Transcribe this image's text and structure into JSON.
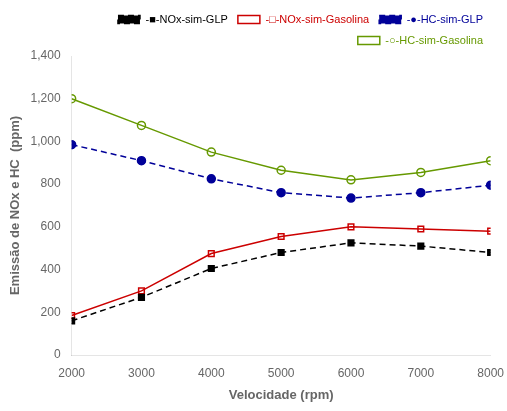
{
  "chart_data": {
    "type": "line",
    "x": [
      2000,
      3000,
      4000,
      5000,
      6000,
      7000,
      8000
    ],
    "series": [
      {
        "name": "-■-NOx-sim-GLP",
        "color": "#000000",
        "line_style": "dashed",
        "marker": "square",
        "values": [
          160,
          270,
          405,
          480,
          525,
          510,
          480
        ]
      },
      {
        "name": "-□-NOx-sim-Gasolina",
        "color": "#cc0000",
        "line_style": "solid",
        "marker": "square-open",
        "values": [
          185,
          300,
          475,
          555,
          600,
          590,
          580
        ]
      },
      {
        "name": "-●-HC-sim-GLP",
        "color": "#000099",
        "line_style": "dashed",
        "marker": "circle",
        "values": [
          985,
          910,
          825,
          760,
          735,
          760,
          795
        ]
      },
      {
        "name": "-○-HC-sim-Gasolina",
        "color": "#669900",
        "line_style": "solid",
        "marker": "circle-open",
        "values": [
          1200,
          1075,
          950,
          865,
          820,
          855,
          910
        ]
      }
    ],
    "xlabel": "Velocidade (rpm)",
    "ylabel": "Emissão de NOx e HC  (ppm)",
    "xlim": [
      2000,
      8000
    ],
    "ylim": [
      0,
      1400
    ],
    "xticks": [
      2000,
      3000,
      4000,
      5000,
      6000,
      7000,
      8000
    ],
    "yticks": [
      0,
      200,
      400,
      600,
      800,
      {
        "value": 1000,
        "label": "1,000"
      },
      {
        "value": 1200,
        "label": "1,200"
      },
      {
        "value": 1400,
        "label": "1,400"
      }
    ],
    "grid": false,
    "legend": "upper right"
  }
}
